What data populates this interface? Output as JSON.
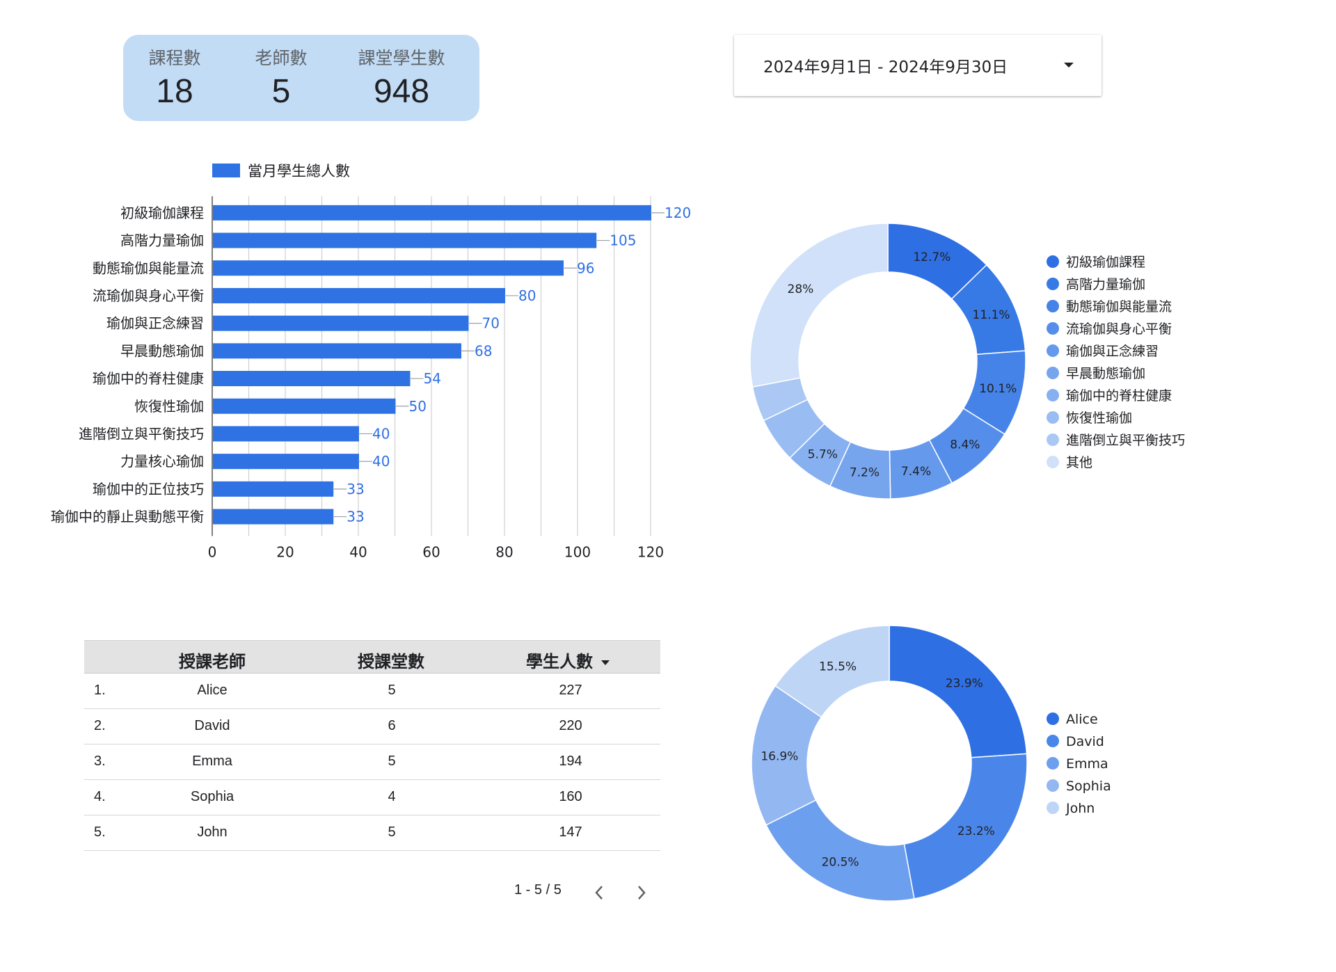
{
  "scorecard": {
    "metrics": [
      {
        "label": "課程數",
        "value": "18"
      },
      {
        "label": "老師數",
        "value": "5"
      },
      {
        "label": "課堂學生數",
        "value": "948"
      }
    ]
  },
  "date_range": {
    "label": "2024年9月1日 - 2024年9月30日"
  },
  "table": {
    "headers": [
      "授課老師",
      "授課堂數",
      "學生人數"
    ],
    "rows": [
      {
        "rank": "1.",
        "teacher": "Alice",
        "classes": "5",
        "students": "227"
      },
      {
        "rank": "2.",
        "teacher": "David",
        "classes": "6",
        "students": "220"
      },
      {
        "rank": "3.",
        "teacher": "Emma",
        "classes": "5",
        "students": "194"
      },
      {
        "rank": "4.",
        "teacher": "Sophia",
        "classes": "4",
        "students": "160"
      },
      {
        "rank": "5.",
        "teacher": "John",
        "classes": "5",
        "students": "147"
      }
    ],
    "pagination": "1 - 5 / 5"
  },
  "chart_data": [
    {
      "type": "bar",
      "orientation": "horizontal",
      "legend": "當月學生總人數",
      "categories": [
        "初級瑜伽課程",
        "高階力量瑜伽",
        "動態瑜伽與能量流",
        "流瑜伽與身心平衡",
        "瑜伽與正念練習",
        "早晨動態瑜伽",
        "瑜伽中的脊柱健康",
        "恢復性瑜伽",
        "進階倒立與平衡技巧",
        "力量核心瑜伽",
        "瑜伽中的正位技巧",
        "瑜伽中的靜止與動態平衡"
      ],
      "values": [
        120,
        105,
        96,
        80,
        70,
        68,
        54,
        50,
        40,
        40,
        33,
        33
      ],
      "xlim": [
        0,
        120
      ],
      "xticks": [
        0,
        20,
        40,
        60,
        80,
        100,
        120
      ],
      "color": "#2f72e4"
    },
    {
      "type": "pie",
      "donut": true,
      "legend_position": "right",
      "slices": [
        {
          "label": "初級瑜伽課程",
          "value": 12.7,
          "display": "12.7%",
          "color": "#2f6fe4"
        },
        {
          "label": "高階力量瑜伽",
          "value": 11.1,
          "display": "11.1%",
          "color": "#377ae6"
        },
        {
          "label": "動態瑜伽與能量流",
          "value": 10.1,
          "display": "10.1%",
          "color": "#4583e8"
        },
        {
          "label": "流瑜伽與身心平衡",
          "value": 8.4,
          "display": "8.4%",
          "color": "#558eea"
        },
        {
          "label": "瑜伽與正念練習",
          "value": 7.4,
          "display": "7.4%",
          "color": "#6599ec"
        },
        {
          "label": "早晨動態瑜伽",
          "value": 7.2,
          "display": "7.2%",
          "color": "#76a5ee"
        },
        {
          "label": "瑜伽中的脊柱健康",
          "value": 5.7,
          "display": "5.7%",
          "color": "#87b0f0"
        },
        {
          "label": "恢復性瑜伽",
          "value": 5.3,
          "display": "",
          "color": "#99bcf2"
        },
        {
          "label": "進階倒立與平衡技巧",
          "value": 4.1,
          "display": "",
          "color": "#abc8f4"
        },
        {
          "label": "其他",
          "value": 28,
          "display": "28%",
          "color": "#d0e1f9"
        }
      ]
    },
    {
      "type": "pie",
      "donut": true,
      "legend_position": "right",
      "slices": [
        {
          "label": "Alice",
          "value": 23.9,
          "display": "23.9%",
          "color": "#2e6fe4"
        },
        {
          "label": "David",
          "value": 23.2,
          "display": "23.2%",
          "color": "#4a86e9"
        },
        {
          "label": "Emma",
          "value": 20.5,
          "display": "20.5%",
          "color": "#6c9fee"
        },
        {
          "label": "Sophia",
          "value": 16.9,
          "display": "16.9%",
          "color": "#93b8f1"
        },
        {
          "label": "John",
          "value": 15.5,
          "display": "15.5%",
          "color": "#bed5f6"
        }
      ]
    }
  ]
}
